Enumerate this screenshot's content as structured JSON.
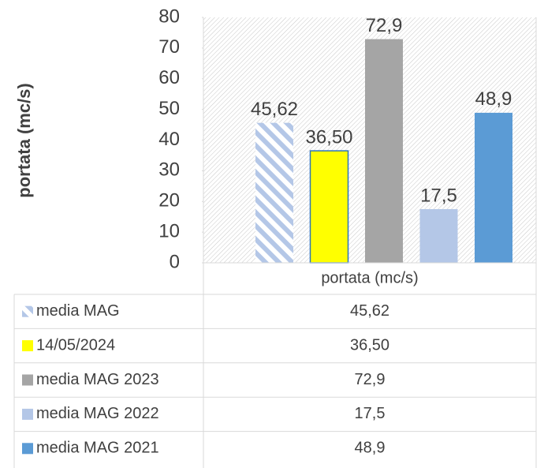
{
  "chart_data": {
    "type": "bar",
    "y_label": "portata (mc/s)",
    "categories": [
      "portata (mc/s)"
    ],
    "series": [
      {
        "name": "media MAG",
        "color": "#b4c7e7",
        "hatched": true,
        "values": [
          45.62
        ],
        "value_labels": [
          "45,62"
        ]
      },
      {
        "name": "14/05/2024",
        "color": "#ffff00",
        "edgecolor": "#2e75b6",
        "values": [
          36.5
        ],
        "value_labels": [
          "36,50"
        ]
      },
      {
        "name": "media MAG 2023",
        "color": "#a5a5a5",
        "values": [
          72.9
        ],
        "value_labels": [
          "72,9"
        ]
      },
      {
        "name": "media MAG 2022",
        "color": "#b4c7e7",
        "values": [
          17.5
        ],
        "value_labels": [
          "17,5"
        ]
      },
      {
        "name": "media MAG 2021",
        "color": "#5b9bd5",
        "values": [
          48.9
        ],
        "value_labels": [
          "48,9"
        ]
      }
    ],
    "ylim": [
      0,
      80
    ],
    "yticks": [
      0,
      10,
      20,
      30,
      40,
      50,
      60,
      70,
      80
    ],
    "data_table": true
  }
}
